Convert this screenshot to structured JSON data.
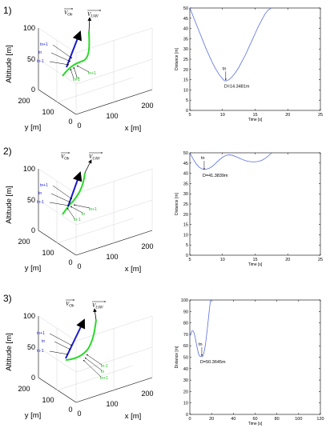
{
  "panels": [
    {
      "number": "1)",
      "plot3d": {
        "zlabel": "Altitude [m]",
        "ylabel": "y [m]",
        "xlabel": "x [m]",
        "z_ticks": [
          "100",
          "50",
          "0"
        ],
        "y_ticks": [
          "200",
          "100",
          "0"
        ],
        "x_ticks": [
          "0",
          "100",
          "200"
        ],
        "vec_obstacle": "V_Ob",
        "vec_uav": "V_UAV",
        "blue_labels": [
          "tn+1",
          "tn",
          "tn-1"
        ],
        "green_labels": [
          "tn-1",
          "tn",
          "tn+1"
        ]
      },
      "chart_data": {
        "type": "line",
        "xlabel": "Time [s]",
        "ylabel": "Distance [m]",
        "xlim": [
          5,
          25
        ],
        "ylim": [
          0,
          50
        ],
        "x_ticks": [
          5,
          10,
          15,
          20,
          25
        ],
        "y_ticks": [
          0,
          5,
          10,
          15,
          20,
          25,
          30,
          35,
          40,
          45,
          50
        ],
        "series": [
          {
            "x": [
              5,
              5.5,
              6,
              6.5,
              7,
              7.5,
              8,
              8.5,
              9,
              9.5,
              10,
              10.3,
              10.6,
              11,
              11.5,
              12,
              12.5,
              13,
              13.5,
              14,
              14.5,
              15,
              15.5,
              16,
              16.5,
              17,
              17.5,
              18
            ],
            "values": [
              50,
              46,
              42,
              38,
              34,
              30,
              26.5,
              23,
              20,
              17.5,
              15.5,
              14.5,
              14.4,
              15,
              16.5,
              18.5,
              21,
              24,
              27,
              30.5,
              34,
              37.5,
              41,
              44,
              47,
              49,
              50,
              51
            ]
          }
        ],
        "annotation": {
          "marker_label": "tn",
          "text": "D=14.3481m",
          "x": 10.5,
          "y": 14.35
        }
      }
    },
    {
      "number": "2)",
      "plot3d": {
        "zlabel": "Altitude [m]",
        "ylabel": "y [m]",
        "xlabel": "x [m]",
        "z_ticks": [
          "100",
          "50",
          "0"
        ],
        "y_ticks": [
          "200",
          "100",
          "0"
        ],
        "x_ticks": [
          "0",
          "100",
          "200"
        ],
        "vec_obstacle": "V_Ob",
        "vec_uav": "V_UAV",
        "blue_labels": [
          "tn+1",
          "tn",
          "tn-1"
        ],
        "green_labels": [
          "tn-1",
          "tn",
          "tn+1"
        ]
      },
      "chart_data": {
        "type": "line",
        "xlabel": "Time [s]",
        "ylabel": "Distance [m]",
        "xlim": [
          5,
          25
        ],
        "ylim": [
          0,
          50
        ],
        "x_ticks": [
          5,
          10,
          15,
          20,
          25
        ],
        "y_ticks": [
          0,
          5,
          10,
          15,
          20,
          25,
          30,
          35,
          40,
          45,
          50
        ],
        "series": [
          {
            "x": [
              5,
              5.5,
              6,
              6.5,
              7,
              7.5,
              8,
              8.5,
              9,
              9.5,
              10,
              10.5,
              11,
              11.5,
              12,
              12.5,
              13,
              13.5,
              14,
              14.5,
              15,
              15.5,
              16,
              16.5,
              17,
              17.5,
              18
            ],
            "values": [
              50,
              47,
              44.5,
              42.8,
              42,
              42,
              42.5,
              43.5,
              45,
              46.5,
              47.8,
              48.7,
              49,
              48.8,
              48.2,
              47.5,
              46.8,
              46.2,
              45.8,
              45.6,
              45.6,
              45.8,
              46.3,
              47.2,
              48.4,
              49.8,
              51
            ]
          }
        ],
        "annotation": {
          "marker_label": "tn",
          "text": "D=41.3839m",
          "x": 7.2,
          "y": 41.38
        }
      }
    },
    {
      "number": "3)",
      "plot3d": {
        "zlabel": "Altitude [m]",
        "ylabel": "y [m]",
        "xlabel": "x [m]",
        "z_ticks": [
          "100",
          "50",
          "0"
        ],
        "y_ticks": [
          "200",
          "100",
          "0"
        ],
        "x_ticks": [
          "0",
          "100",
          "200"
        ],
        "vec_obstacle": "V_Ob",
        "vec_uav": "V_UAV",
        "blue_labels": [
          "tn+1",
          "tn",
          "tn-1"
        ],
        "green_labels": [
          "tn+1",
          "tn",
          "tn-1"
        ]
      },
      "chart_data": {
        "type": "line",
        "xlabel": "Time [s]",
        "ylabel": "Distance [m]",
        "xlim": [
          0,
          120
        ],
        "ylim": [
          0,
          100
        ],
        "x_ticks": [
          0,
          20,
          40,
          60,
          80,
          100,
          120
        ],
        "y_ticks": [
          0,
          10,
          20,
          30,
          40,
          50,
          60,
          70,
          80,
          90,
          100
        ],
        "series": [
          {
            "x": [
              0,
              1,
              2,
              3,
              4,
              5,
              6,
              7,
              8,
              9,
              10,
              11,
              12,
              13,
              14,
              15,
              16,
              17,
              18,
              19,
              20
            ],
            "values": [
              68,
              71,
              73,
              73,
              71,
              67,
              62,
              57,
              53,
              51,
              50.5,
              50.4,
              51,
              54,
              59,
              66,
              74,
              83,
              92,
              100,
              110
            ]
          }
        ],
        "annotation": {
          "marker_label": "tn",
          "text": "D=50.3645m",
          "x": 11,
          "y": 50.36
        }
      }
    }
  ]
}
